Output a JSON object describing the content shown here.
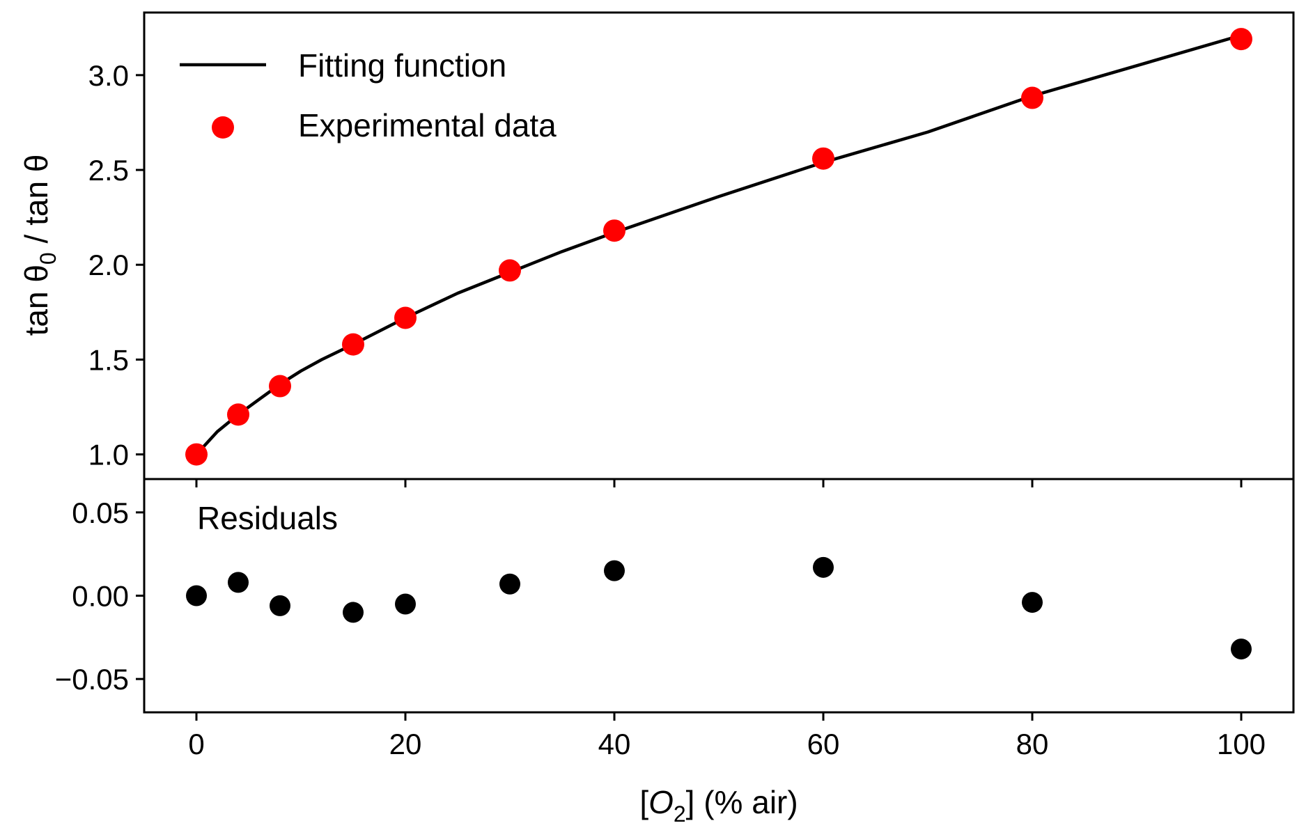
{
  "chart_data": [
    {
      "type": "line",
      "panel": "main",
      "ylabel_parts": [
        "tan θ",
        "0",
        " / tan θ"
      ],
      "xlim": [
        -5,
        105
      ],
      "ylim": [
        0.87,
        3.33
      ],
      "yticks": [
        1.0,
        1.5,
        2.0,
        2.5,
        3.0
      ],
      "ytick_labels": [
        "1.0",
        "1.5",
        "2.0",
        "2.5",
        "3.0"
      ],
      "legend": {
        "placement": "top-left",
        "entries": [
          {
            "label": "Fitting function",
            "marker": "line",
            "color": "#000000"
          },
          {
            "label": "Experimental data",
            "marker": "circle",
            "color": "#ff0000"
          }
        ]
      },
      "series": [
        {
          "name": "Fitting function",
          "style": "line",
          "color": "#000000",
          "x": [
            0,
            2,
            4,
            6,
            8,
            10,
            12,
            15,
            20,
            25,
            30,
            35,
            40,
            50,
            60,
            70,
            80,
            90,
            100
          ],
          "y": [
            1.0,
            1.12,
            1.21,
            1.29,
            1.37,
            1.44,
            1.5,
            1.58,
            1.72,
            1.85,
            1.96,
            2.07,
            2.17,
            2.36,
            2.54,
            2.7,
            2.89,
            3.05,
            3.21
          ]
        },
        {
          "name": "Experimental data",
          "style": "scatter",
          "color": "#ff0000",
          "x": [
            0,
            4,
            8,
            15,
            20,
            30,
            40,
            60,
            80,
            100
          ],
          "y": [
            1.0,
            1.21,
            1.36,
            1.58,
            1.72,
            1.97,
            2.18,
            2.56,
            2.88,
            3.19
          ]
        }
      ],
      "grid": false
    },
    {
      "type": "scatter",
      "panel": "residuals",
      "title": "Residuals",
      "xlabel_parts": [
        "[",
        "O",
        "2",
        "] (% air)"
      ],
      "xlim": [
        -5,
        105
      ],
      "ylim": [
        -0.07,
        0.07
      ],
      "xticks": [
        0,
        20,
        40,
        60,
        80,
        100
      ],
      "xtick_labels": [
        "0",
        "20",
        "40",
        "60",
        "80",
        "100"
      ],
      "yticks": [
        -0.05,
        0.0,
        0.05
      ],
      "ytick_labels": [
        "−0.05",
        "0.00",
        "0.05"
      ],
      "series": [
        {
          "style": "scatter",
          "color": "#000000",
          "x": [
            0,
            4,
            8,
            15,
            20,
            30,
            40,
            60,
            80,
            100
          ],
          "y": [
            0.0,
            0.008,
            -0.006,
            -0.01,
            -0.005,
            0.007,
            0.015,
            0.017,
            -0.004,
            -0.032
          ]
        }
      ],
      "grid": false
    }
  ]
}
